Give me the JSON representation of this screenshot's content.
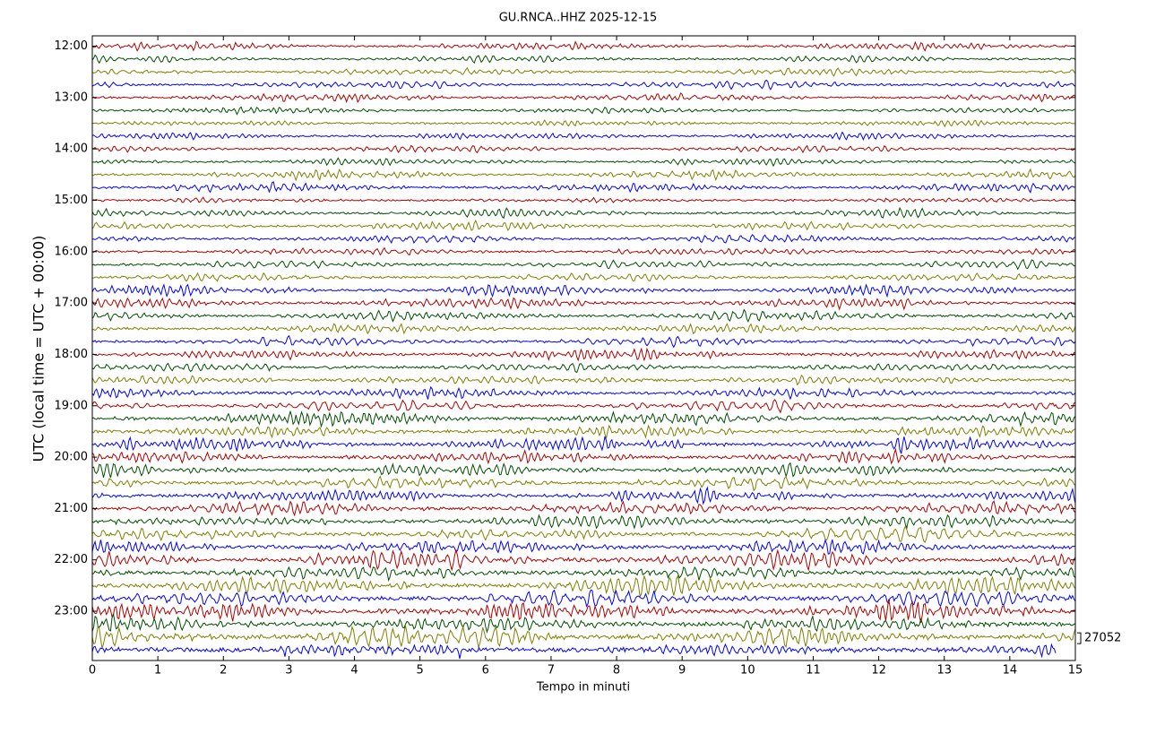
{
  "chart_data": {
    "type": "helicorder",
    "title": "GU.RNCA..HHZ 2025-12-15",
    "x_label": "Tempo in minuti",
    "y_label": "UTC (local time = UTC + 00:00)",
    "xlim": [
      0,
      15
    ],
    "xticks": [
      0,
      1,
      2,
      3,
      4,
      5,
      6,
      7,
      8,
      9,
      10,
      11,
      12,
      13,
      14,
      15
    ],
    "yticks": [
      "12:00",
      "13:00",
      "14:00",
      "15:00",
      "16:00",
      "17:00",
      "18:00",
      "19:00",
      "20:00",
      "21:00",
      "22:00",
      "23:00"
    ],
    "trace_colors": [
      "#b00000",
      "#004f00",
      "#808000",
      "#0000ff"
    ],
    "scale": 27052
  }
}
